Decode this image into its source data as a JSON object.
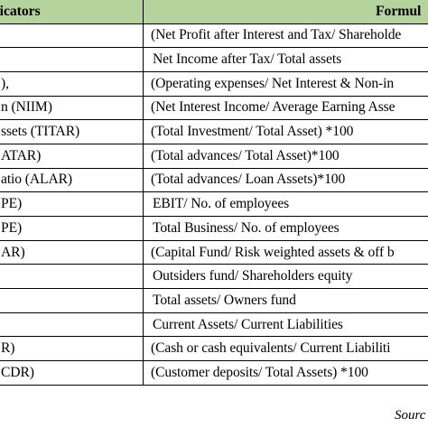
{
  "table": {
    "header": {
      "indicator": "dicators",
      "formula": "Formul"
    },
    "rows": [
      {
        "indicator": "",
        "formula": "(Net Profit after Interest and Tax/ Shareholde"
      },
      {
        "indicator": "",
        "formula": "Net Income after Tax/ Total assets"
      },
      {
        "indicator": "),",
        "formula": "(Operating expenses/ Net Interest & Non-in"
      },
      {
        "indicator": "n (NIIM)",
        "formula": "(Net Interest Income/ Average Earning Asse"
      },
      {
        "indicator": "ssets (TITAR)",
        "formula": "(Total Investment/ Total Asset) *100"
      },
      {
        "indicator": "ATAR)",
        "formula": "(Total advances/ Total Asset)*100"
      },
      {
        "indicator": "atio (ALAR)",
        "formula": "(Total advances/ Loan Assets)*100"
      },
      {
        "indicator": "PE)",
        "formula": "EBIT/ No. of employees"
      },
      {
        "indicator": "PE)",
        "formula": "Total Business/ No. of employees"
      },
      {
        "indicator": "AR)",
        "formula": "(Capital Fund/ Risk weighted assets & off b"
      },
      {
        "indicator": "",
        "formula": "Outsiders fund/ Shareholders equity"
      },
      {
        "indicator": "",
        "formula": "Total assets/ Owners fund"
      },
      {
        "indicator": "",
        "formula": "Current Assets/ Current Liabilities"
      },
      {
        "indicator": "R)",
        "formula": "(Cash or cash equivalents/ Current Liabiliti"
      },
      {
        "indicator": "CDR)",
        "formula": "(Customer deposits/ Total Assets) *100"
      }
    ]
  },
  "source_text": "Sourc"
}
